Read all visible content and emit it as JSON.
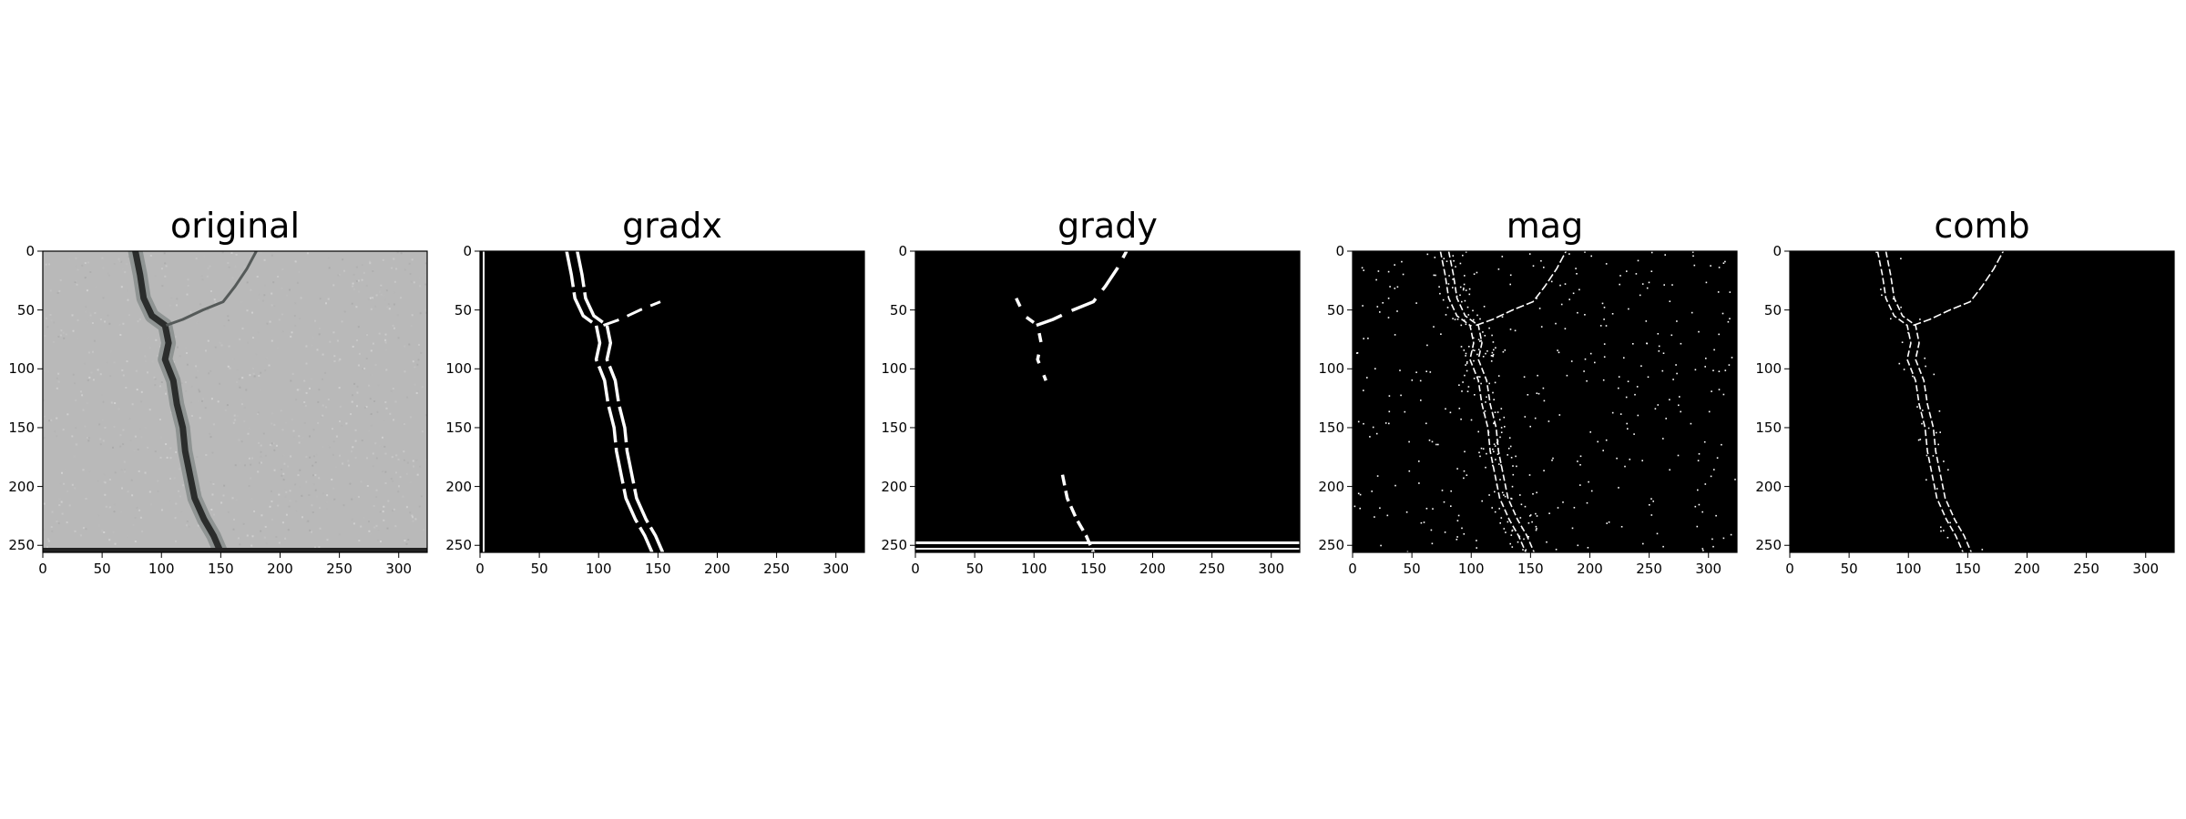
{
  "figure": {
    "panels": [
      {
        "title": "original",
        "kind": "photo"
      },
      {
        "title": "gradx",
        "kind": "binary"
      },
      {
        "title": "grady",
        "kind": "binary"
      },
      {
        "title": "mag",
        "kind": "binary"
      },
      {
        "title": "comb",
        "kind": "binary"
      }
    ],
    "x_ticks": [
      "0",
      "50",
      "100",
      "150",
      "200",
      "250",
      "300"
    ],
    "y_ticks": [
      "0",
      "50",
      "100",
      "150",
      "200",
      "250"
    ],
    "image_extent": {
      "width": 324,
      "height": 256
    },
    "colors": {
      "background": "#000000",
      "edge": "#ffffff",
      "concrete": "#b9b9b9",
      "crack": "#2b2d2c"
    }
  }
}
